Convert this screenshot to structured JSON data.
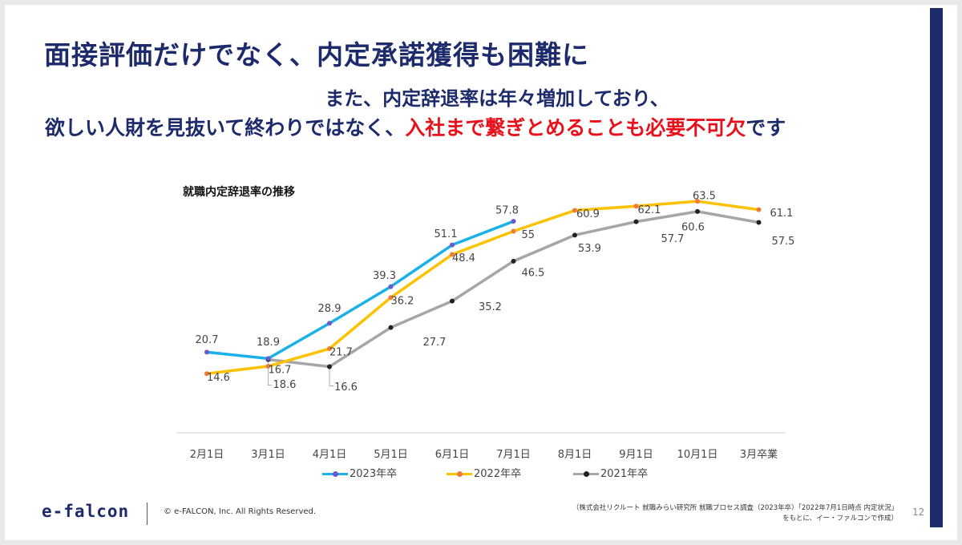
{
  "header": {
    "title": "面接評価だけでなく、内定承諾獲得も困難に",
    "subtitle_line1": "また、内定辞退率は年々増加しており、",
    "subtitle_line2_prefix": "欲しい人財を見抜いて終わりではなく、",
    "subtitle_line2_highlight": "入社まで繋ぎとめることも必要不可欠",
    "subtitle_line2_suffix": "です"
  },
  "colors": {
    "navy": "#1d2a6b",
    "highlight_red": "#e8111b",
    "series_2023": "#1ab0e8",
    "series_2022": "#fcc200",
    "series_2021": "#a6a6a6",
    "marker_2023": "#6a5acd",
    "marker_2022": "#f07a3a",
    "marker_2021": "#222222"
  },
  "chart_data": {
    "type": "line",
    "title": "就職内定辞退率の推移",
    "categories": [
      "2月1日",
      "3月1日",
      "4月1日",
      "5月1日",
      "6月1日",
      "7月1日",
      "8月1日",
      "9月1日",
      "10月1日",
      "3月卒業"
    ],
    "series": [
      {
        "name": "2023年卒",
        "values": [
          20.7,
          18.9,
          28.9,
          39.3,
          51.1,
          57.8,
          null,
          null,
          null,
          null
        ]
      },
      {
        "name": "2022年卒",
        "values": [
          14.6,
          16.7,
          21.7,
          36.2,
          48.4,
          55,
          60.9,
          62.1,
          63.5,
          61.1
        ]
      },
      {
        "name": "2021年卒",
        "values": [
          null,
          18.6,
          16.6,
          27.7,
          35.2,
          46.5,
          53.9,
          57.7,
          60.6,
          57.5
        ]
      }
    ],
    "legend_position": "bottom",
    "grid": false
  },
  "footer": {
    "logo": "e-falcon",
    "copyright": "© e-FALCON, Inc. All Rights Reserved.",
    "source_line1": "（株式会社リクルート 就職みらい研究所 就職プロセス調査（2023年卒）「2022年7月1日時点 内定状況」",
    "source_line2": "をもとに、イー・ファルコンで作成）",
    "page_number": "12"
  }
}
